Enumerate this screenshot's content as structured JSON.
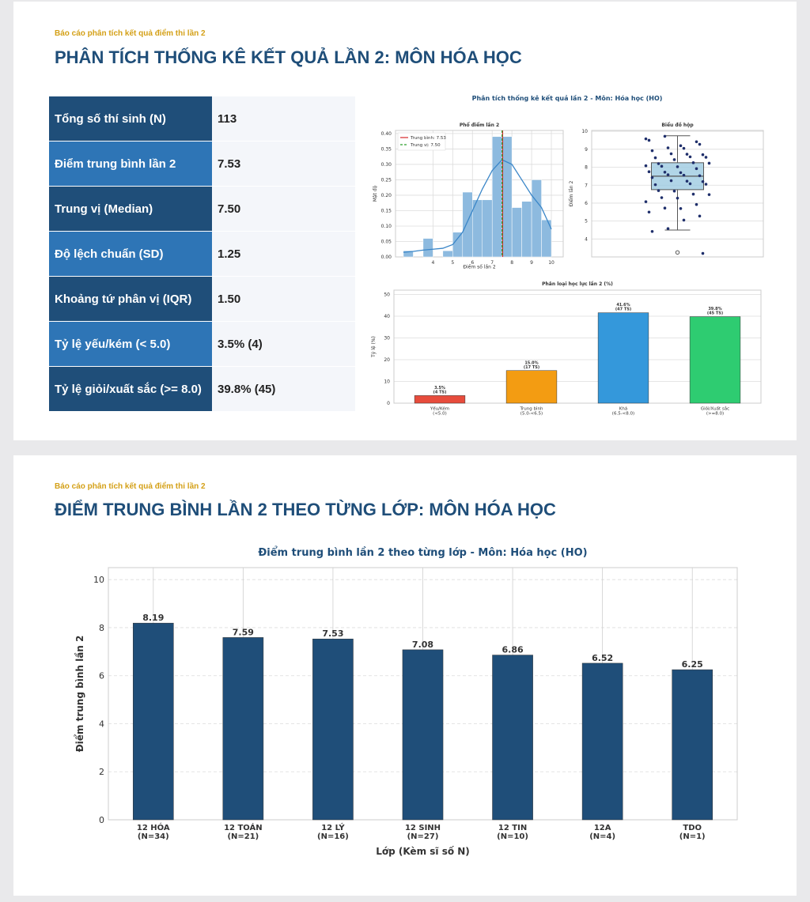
{
  "slide1": {
    "kicker": "Báo cáo phân tích kết quả điểm thi lần 2",
    "title": "PHÂN TÍCH THỐNG KÊ KẾT QUẢ LẦN 2: MÔN HÓA HỌC",
    "table": {
      "rows": [
        [
          "Tổng số thí sinh (N)",
          "113"
        ],
        [
          "Điểm trung bình lần 2",
          "7.53"
        ],
        [
          "Trung vị (Median)",
          "7.50"
        ],
        [
          "Độ lệch chuẩn (SD)",
          "1.25"
        ],
        [
          "Khoảng tứ phân vị (IQR)",
          "1.50"
        ],
        [
          "Tỷ lệ yếu/kém (< 5.0)",
          "3.5% (4)"
        ],
        [
          "Tỷ lệ giỏi/xuất sắc (>= 8.0)",
          "39.8% (45)"
        ]
      ]
    },
    "figure_title": "Phân tích thống kê kết quả lần 2 - Môn: Hóa học (HO)"
  },
  "slide2": {
    "kicker": "Báo cáo phân tích kết quả điểm thi lần 2",
    "title": "ĐIỂM TRUNG BÌNH LẦN 2 THEO TỪNG LỚP: MÔN HÓA HỌC"
  },
  "chart_data": [
    {
      "type": "histogram",
      "title": "Phổ điểm lần 2",
      "x_label": "Điểm số lần 2",
      "y_label": "Mật độ",
      "bins": [
        2.5,
        3,
        3.5,
        4,
        4.5,
        5,
        5.5,
        6,
        6.5,
        7,
        7.5,
        8,
        8.5,
        9,
        9.5,
        10
      ],
      "values": [
        0.02,
        0,
        0.06,
        0,
        0.02,
        0.08,
        0.21,
        0.185,
        0.185,
        0.39,
        0.39,
        0.16,
        0.18,
        0.25,
        0.12
      ],
      "color": "#8dbadf",
      "kde": {
        "color": "#3a86c8",
        "x": [
          2.5,
          3,
          3.5,
          4,
          4.5,
          5,
          5.5,
          6,
          6.5,
          7,
          7.5,
          8,
          8.5,
          9,
          9.5,
          10
        ],
        "y": [
          0.015,
          0.018,
          0.022,
          0.025,
          0.028,
          0.04,
          0.08,
          0.15,
          0.22,
          0.28,
          0.315,
          0.3,
          0.25,
          0.2,
          0.16,
          0.09
        ]
      },
      "lines": [
        {
          "name": "Trung bình: 7.53",
          "value": 7.53,
          "color": "#d62728",
          "dash": false
        },
        {
          "name": "Trung vị: 7.50",
          "value": 7.5,
          "color": "#2ca02c",
          "dash": true
        }
      ],
      "xlim": [
        2.1,
        10.6
      ],
      "xticks": [
        4,
        5,
        6,
        7,
        8,
        9,
        10
      ],
      "ylim": [
        0,
        0.41
      ],
      "yticks": [
        {
          "value": 0,
          "label": "0.00"
        },
        {
          "value": 0.05,
          "label": "0.05"
        },
        {
          "value": 0.1,
          "label": "0.10"
        },
        {
          "value": 0.15,
          "label": "0.15"
        },
        {
          "value": 0.2,
          "label": "0.20"
        },
        {
          "value": 0.25,
          "label": "0.25"
        },
        {
          "value": 0.3,
          "label": "0.30"
        },
        {
          "value": 0.35,
          "label": "0.35"
        },
        {
          "value": 0.4,
          "label": "0.40"
        }
      ],
      "grid": true
    },
    {
      "type": "box",
      "title": "Biểu đồ hộp",
      "y_label": "Điểm lần 2",
      "whisker_low": 4.5,
      "q1": 6.75,
      "median": 7.5,
      "q3": 8.25,
      "whisker_high": 9.75,
      "outliers": [
        3.25
      ],
      "points": [
        9.5,
        9.5,
        9.25,
        9.75,
        9.5,
        9.25,
        9,
        9,
        9,
        8.75,
        8.75,
        8.75,
        8.5,
        8.5,
        8.5,
        8.5,
        8.25,
        8.25,
        8.25,
        8,
        8,
        8,
        8,
        7.75,
        7.75,
        7.75,
        7.5,
        7.5,
        7.5,
        7.5,
        7.25,
        7.25,
        7.25,
        7,
        7,
        7,
        6.75,
        6.75,
        6.5,
        6.5,
        6.25,
        6.25,
        6,
        6,
        5.75,
        5.75,
        5.5,
        5.25,
        5,
        4.5,
        4.5,
        3.25
      ],
      "color": "#9ecae1",
      "point_color": "#1f2f6b",
      "ylim": [
        3,
        10.05
      ],
      "yticks": [
        4,
        5,
        6,
        7,
        8,
        9,
        10
      ],
      "grid": true
    },
    {
      "type": "bar",
      "title": "Phân loại học lực lần 2 (%)",
      "y_label": "Tỷ lệ (%)",
      "categories": [
        [
          "Yếu/Kém",
          "(<5.0)"
        ],
        [
          "Trung bình",
          "(5.0-<6.5)"
        ],
        [
          "Khá",
          "(6.5-<8.0)"
        ],
        [
          "Giỏi/Xuất sắc",
          "(>=8.0)"
        ]
      ],
      "values": [
        3.5,
        15.0,
        41.6,
        39.8
      ],
      "value_labels": [
        [
          "3.5%",
          "(4 TS)"
        ],
        [
          "15.0%",
          "(17 TS)"
        ],
        [
          "41.6%",
          "(47 TS)"
        ],
        [
          "39.8%",
          "(45 TS)"
        ]
      ],
      "colors": [
        "#e74c3c",
        "#f39c12",
        "#3498db",
        "#2ecc71"
      ],
      "ylim": [
        0,
        52
      ],
      "yticks": [
        0,
        10,
        20,
        30,
        40,
        50
      ],
      "grid": true
    },
    {
      "type": "bar",
      "title": "Điểm trung bình lần 2 theo từng lớp - Môn: Hóa học (HO)",
      "x_label": "Lớp (Kèm sĩ số N)",
      "y_label": "Điểm trung bình lần 2",
      "categories": [
        [
          "12 HÓA",
          "(N=34)"
        ],
        [
          "12 TOÁN",
          "(N=21)"
        ],
        [
          "12 LÝ",
          "(N=16)"
        ],
        [
          "12 SINH",
          "(N=27)"
        ],
        [
          "12 TIN",
          "(N=10)"
        ],
        [
          "12A",
          "(N=4)"
        ],
        [
          "TDO",
          "(N=1)"
        ]
      ],
      "values": [
        8.19,
        7.59,
        7.53,
        7.08,
        6.86,
        6.52,
        6.25
      ],
      "value_labels": [
        [
          "8.19"
        ],
        [
          "7.59"
        ],
        [
          "7.53"
        ],
        [
          "7.08"
        ],
        [
          "6.86"
        ],
        [
          "6.52"
        ],
        [
          "6.25"
        ]
      ],
      "color": "#1f4e79",
      "ylim": [
        0,
        10.5
      ],
      "yticks": [
        0,
        2,
        4,
        6,
        8,
        10
      ],
      "grid": true
    }
  ]
}
